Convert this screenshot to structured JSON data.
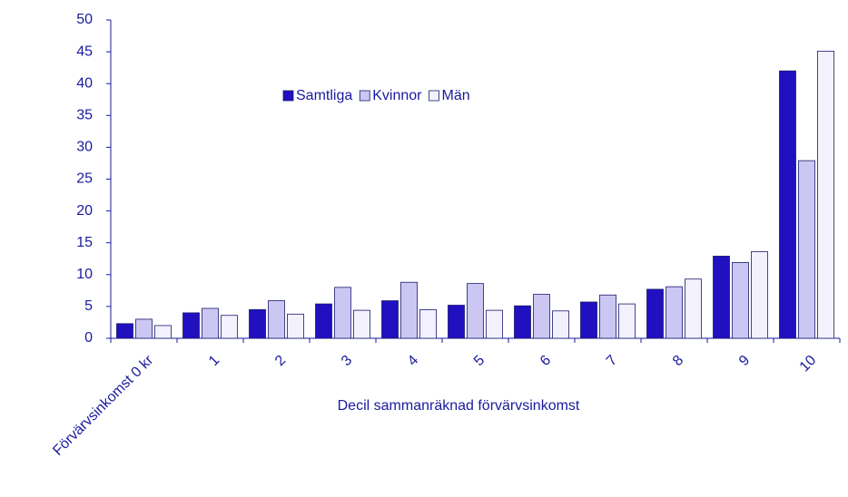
{
  "chart_data": {
    "type": "bar",
    "x_label": "Decil sammanräknad förvärvsinkomst",
    "categories": [
      "Förvärvsinkomst 0 kr",
      "1",
      "2",
      "3",
      "4",
      "5",
      "6",
      "7",
      "8",
      "9",
      "10"
    ],
    "series": [
      {
        "name": "Samtliga",
        "color": "#2010c0",
        "values": [
          2.3,
          4.0,
          4.5,
          5.4,
          5.9,
          5.2,
          5.1,
          5.7,
          7.7,
          12.9,
          42.0
        ]
      },
      {
        "name": "Kvinnor",
        "color": "#cbc7f2",
        "values": [
          3.0,
          4.7,
          5.9,
          8.0,
          8.8,
          8.6,
          6.9,
          6.8,
          8.1,
          11.9,
          27.9
        ]
      },
      {
        "name": "Män",
        "color": "#f2f1fd",
        "values": [
          2.0,
          3.6,
          3.8,
          4.4,
          4.5,
          4.4,
          4.3,
          5.4,
          9.3,
          13.6,
          45.1
        ]
      }
    ],
    "ylim": [
      0,
      50
    ],
    "yticks": [
      0,
      5,
      10,
      15,
      20,
      25,
      30,
      35,
      40,
      45,
      50
    ],
    "legend": "top-left",
    "grid": false
  }
}
